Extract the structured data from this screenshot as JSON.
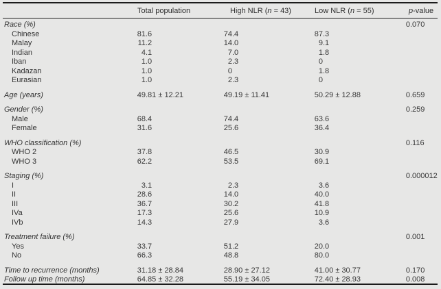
{
  "header": {
    "col1": "Total population",
    "col2": {
      "pre": "High NLR (",
      "n": "n",
      "post": " = 43)"
    },
    "col3": {
      "pre": "Low NLR (",
      "n": "n",
      "post": " = 55)"
    },
    "col4": {
      "italic": "p",
      "rest": "-value"
    }
  },
  "rows": [
    {
      "label": "Race (%)",
      "section": true,
      "gap": false,
      "v1": "",
      "v2": "",
      "v3": "",
      "p": "0.070"
    },
    {
      "label": "Chinese",
      "section": false,
      "gap": false,
      "v1": "81.6",
      "v2": "74.4",
      "v3": "87.3",
      "p": ""
    },
    {
      "label": "Malay",
      "section": false,
      "gap": false,
      "v1": "11.2",
      "v2": "14.0",
      "v3": "9.1",
      "p": ""
    },
    {
      "label": "Indian",
      "section": false,
      "gap": false,
      "v1": "4.1",
      "v2": "7.0",
      "v3": "1.8",
      "p": ""
    },
    {
      "label": "Iban",
      "section": false,
      "gap": false,
      "v1": "1.0",
      "v2": "2.3",
      "v3": "0",
      "p": ""
    },
    {
      "label": "Kadazan",
      "section": false,
      "gap": false,
      "v1": "1.0",
      "v2": "0",
      "v3": "1.8",
      "p": ""
    },
    {
      "label": "Eurasian",
      "section": false,
      "gap": false,
      "v1": "1.0",
      "v2": "2.3",
      "v3": "0",
      "p": ""
    },
    {
      "label": "Age (years)",
      "section": true,
      "gap": true,
      "v1": "49.81 ± 12.21",
      "v2": "49.19 ± 11.41",
      "v3": "50.29 ± 12.88",
      "p": "0.659"
    },
    {
      "label": "Gender (%)",
      "section": true,
      "gap": true,
      "v1": "",
      "v2": "",
      "v3": "",
      "p": "0.259"
    },
    {
      "label": "Male",
      "section": false,
      "gap": false,
      "v1": "68.4",
      "v2": "74.4",
      "v3": "63.6",
      "p": ""
    },
    {
      "label": "Female",
      "section": false,
      "gap": false,
      "v1": "31.6",
      "v2": "25.6",
      "v3": "36.4",
      "p": ""
    },
    {
      "label": "WHO classification (%)",
      "section": true,
      "gap": true,
      "v1": "",
      "v2": "",
      "v3": "",
      "p": "0.116"
    },
    {
      "label": "WHO 2",
      "section": false,
      "gap": false,
      "v1": "37.8",
      "v2": "46.5",
      "v3": "30.9",
      "p": ""
    },
    {
      "label": "WHO 3",
      "section": false,
      "gap": false,
      "v1": "62.2",
      "v2": "53.5",
      "v3": "69.1",
      "p": ""
    },
    {
      "label": "Staging (%)",
      "section": true,
      "gap": true,
      "v1": "",
      "v2": "",
      "v3": "",
      "p": "0.000012"
    },
    {
      "label": "I",
      "section": false,
      "gap": false,
      "v1": "3.1",
      "v2": "2.3",
      "v3": "3.6",
      "p": ""
    },
    {
      "label": "II",
      "section": false,
      "gap": false,
      "v1": "28.6",
      "v2": "14.0",
      "v3": "40.0",
      "p": ""
    },
    {
      "label": "III",
      "section": false,
      "gap": false,
      "v1": "36.7",
      "v2": "30.2",
      "v3": "41.8",
      "p": ""
    },
    {
      "label": "IVa",
      "section": false,
      "gap": false,
      "v1": "17.3",
      "v2": "25.6",
      "v3": "10.9",
      "p": ""
    },
    {
      "label": "IVb",
      "section": false,
      "gap": false,
      "v1": "14.3",
      "v2": "27.9",
      "v3": "3.6",
      "p": ""
    },
    {
      "label": "Treatment failure (%)",
      "section": true,
      "gap": true,
      "v1": "",
      "v2": "",
      "v3": "",
      "p": "0.001"
    },
    {
      "label": "Yes",
      "section": false,
      "gap": false,
      "v1": "33.7",
      "v2": "51.2",
      "v3": "20.0",
      "p": ""
    },
    {
      "label": "No",
      "section": false,
      "gap": false,
      "v1": "66.3",
      "v2": "48.8",
      "v3": "80.0",
      "p": ""
    },
    {
      "label": "Time to recurrence (months)",
      "section": true,
      "gap": true,
      "v1": "31.18 ± 28.84",
      "v2": "28.90 ± 27.12",
      "v3": "41.00 ± 30.77",
      "p": "0.170"
    },
    {
      "label": "Follow up time (months)",
      "section": true,
      "gap": false,
      "v1": "64.85 ± 32.28",
      "v2": "55.19 ± 34.05",
      "v3": "72.40 ± 28.93",
      "p": "0.008"
    }
  ],
  "column_anchors": {
    "v1": 212,
    "v2": 338,
    "v3": 470,
    "p": 597
  }
}
